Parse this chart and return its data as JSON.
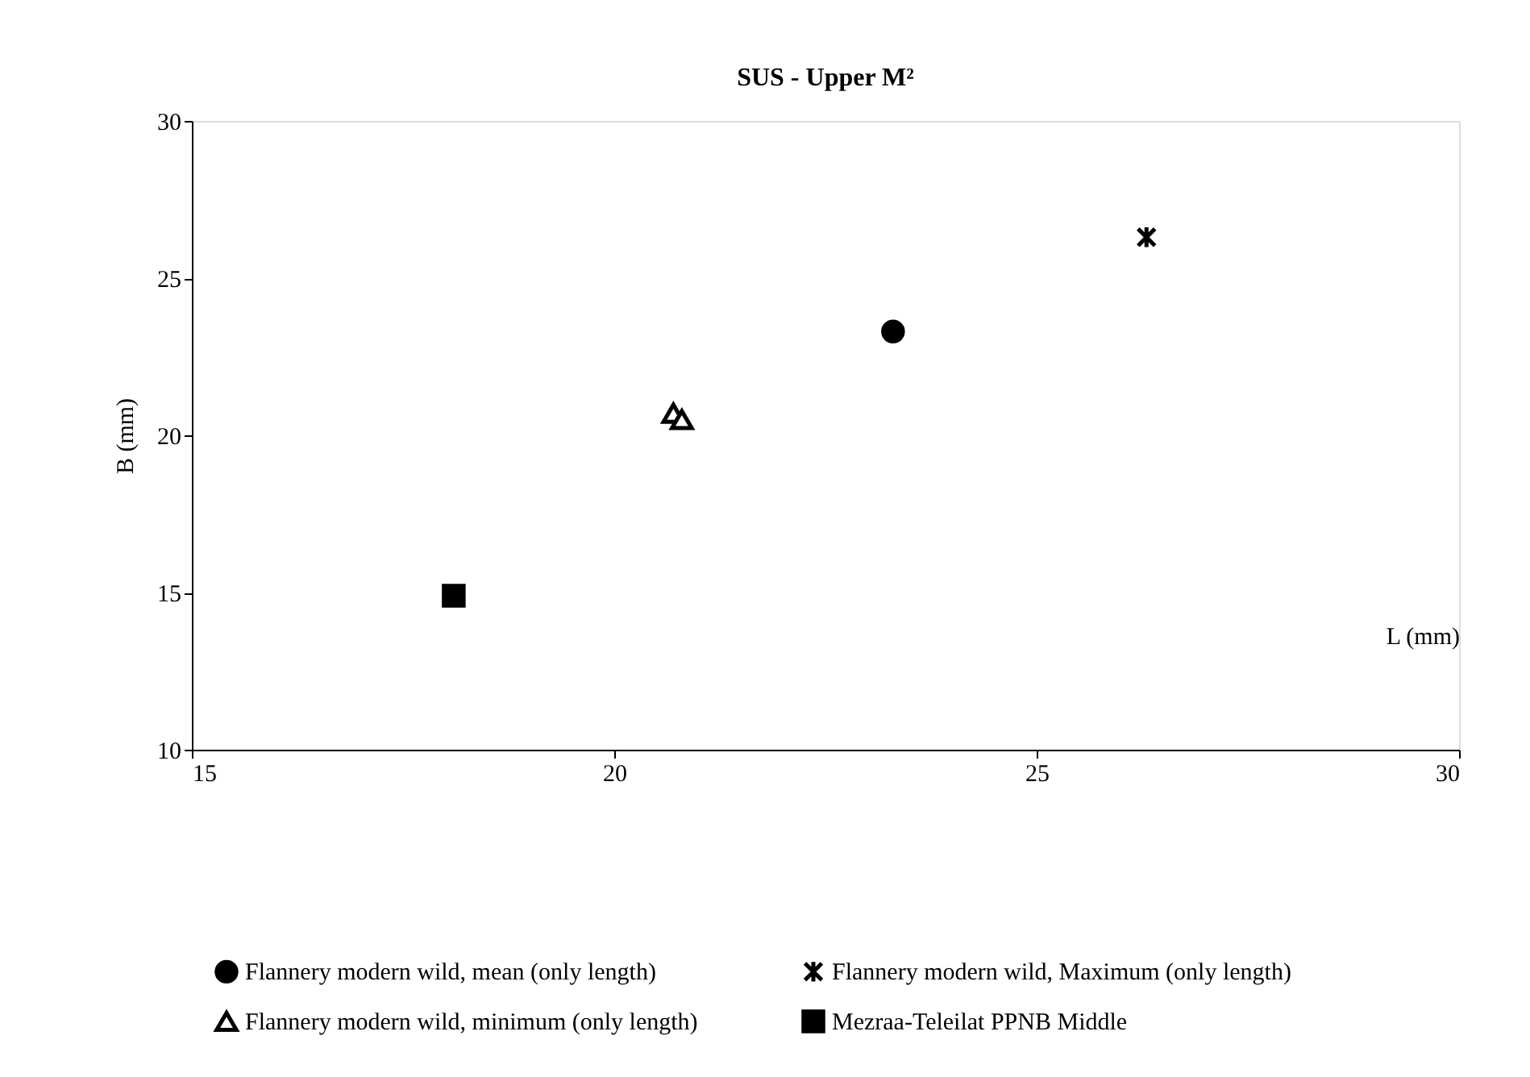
{
  "chart_data": {
    "type": "scatter",
    "title": "SUS - Upper M²",
    "xlabel": "L (mm)",
    "ylabel": "B (mm)",
    "xlim": [
      15,
      30
    ],
    "xticks": [
      15,
      20,
      25,
      30
    ],
    "ylim": [
      10,
      30
    ],
    "yticks": [
      10,
      15,
      20,
      25,
      30
    ],
    "grid": false,
    "legend": "bottom",
    "series": [
      {
        "name": "Flannery modern wild, mean (only  length)",
        "color": "#000000",
        "marker": "circle",
        "x": [
          23.3
        ],
        "values": [
          23.3
        ]
      },
      {
        "name": "Flannery modern wild,  Maximum (only  length)",
        "color": "#000000",
        "marker": "cross",
        "x": [
          26.3
        ],
        "values": [
          26.3
        ]
      },
      {
        "name": "Flannery modern wild, minimum (only length)",
        "color": "#000000",
        "marker": "triangle",
        "x": [
          20.7,
          20.8
        ],
        "values": [
          20.7,
          20.5
        ]
      },
      {
        "name": "Mezraa-Teleilat PPNB Middle",
        "color": "#000000",
        "marker": "square",
        "x": [
          18.1
        ],
        "values": [
          14.9
        ]
      }
    ]
  }
}
